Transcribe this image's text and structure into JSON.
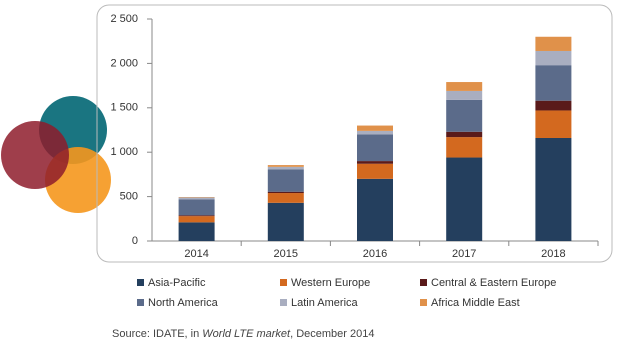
{
  "chart_data": {
    "type": "stacked-bar",
    "categories": [
      "2014",
      "2015",
      "2016",
      "2017",
      "2018"
    ],
    "series": [
      {
        "name": "Asia-Pacific",
        "color": "#243f5e",
        "values": [
          210,
          430,
          700,
          940,
          1160
        ]
      },
      {
        "name": "Western Europe",
        "color": "#d3691f",
        "values": [
          70,
          110,
          170,
          230,
          310
        ]
      },
      {
        "name": "Central & Eastern Europe",
        "color": "#5a1a1a",
        "values": [
          10,
          15,
          30,
          60,
          110
        ]
      },
      {
        "name": "North America",
        "color": "#5b6b8a",
        "values": [
          180,
          250,
          300,
          360,
          400
        ]
      },
      {
        "name": "Latin America",
        "color": "#a9aec0",
        "values": [
          20,
          30,
          40,
          100,
          160
        ]
      },
      {
        "name": "Africa Middle East",
        "color": "#e0914a",
        "values": [
          5,
          20,
          60,
          100,
          160
        ]
      }
    ],
    "ylim": [
      0,
      2500
    ],
    "yticks": [
      0,
      500,
      {
        "value": 1000,
        "label": "1 000"
      },
      {
        "value": 1500,
        "label": "1 500"
      },
      {
        "value": 2000,
        "label": "2 000"
      },
      {
        "value": 2500,
        "label": "2 500"
      }
    ],
    "grid": false,
    "source": {
      "prefix": "Source: IDATE, in ",
      "italic": "World LTE market",
      "suffix": ", December 2014"
    }
  }
}
